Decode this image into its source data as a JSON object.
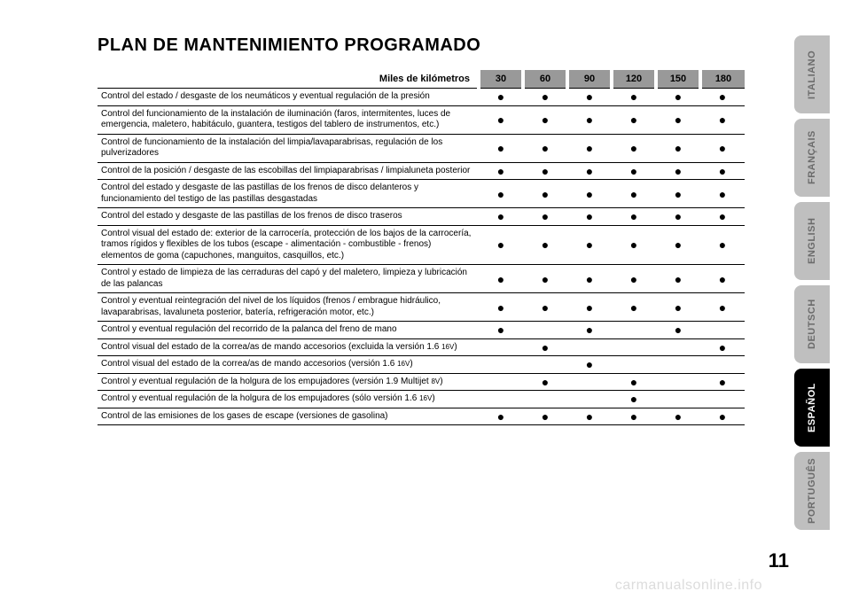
{
  "title": "PLAN DE MANTENIMIENTO PROGRAMADO",
  "header_label": "Miles de kilómetros",
  "columns": [
    "30",
    "60",
    "90",
    "120",
    "150",
    "180"
  ],
  "rows": [
    {
      "desc": "Control del estado / desgaste de los neumáticos y eventual regulación de la presión",
      "dots": [
        1,
        1,
        1,
        1,
        1,
        1
      ]
    },
    {
      "desc": "Control del funcionamiento de la instalación de iluminación (faros, intermitentes, luces de emergencia, maletero, habitáculo, guantera, testigos del tablero de instrumentos, etc.)",
      "dots": [
        1,
        1,
        1,
        1,
        1,
        1
      ]
    },
    {
      "desc": "Control de funcionamiento de la instalación del limpia/lavaparabrisas, regulación de los pulverizadores",
      "dots": [
        1,
        1,
        1,
        1,
        1,
        1
      ]
    },
    {
      "desc": "Control de la posición / desgaste de las escobillas del limpiaparabrisas / limpialuneta posterior",
      "dots": [
        1,
        1,
        1,
        1,
        1,
        1
      ]
    },
    {
      "desc": "Control del estado y desgaste de las pastillas de los frenos de disco delanteros y funcionamiento del testigo de las pastillas desgastadas",
      "dots": [
        1,
        1,
        1,
        1,
        1,
        1
      ]
    },
    {
      "desc": "Control del estado y desgaste de las pastillas de los frenos de disco traseros",
      "dots": [
        1,
        1,
        1,
        1,
        1,
        1
      ]
    },
    {
      "desc": "Control visual del estado de: exterior de la carrocería, protección de los bajos de la carrocería, tramos rígidos y flexibles de los tubos (escape -  alimentación - combustible - frenos) elementos de goma (capuchones, manguitos, casquillos, etc.)",
      "dots": [
        1,
        1,
        1,
        1,
        1,
        1
      ]
    },
    {
      "desc": "Control y estado de limpieza de las cerraduras del capó y del maletero, limpieza y lubricación de las palancas",
      "dots": [
        1,
        1,
        1,
        1,
        1,
        1
      ]
    },
    {
      "desc": "Control y eventual reintegración del nivel de los líquidos (frenos / embrague hidráulico, lavaparabrisas, lavaluneta posterior, batería, refrigeración motor, etc.)",
      "dots": [
        1,
        1,
        1,
        1,
        1,
        1
      ]
    },
    {
      "desc": "Control y eventual regulación del recorrido de la palanca del freno de mano",
      "dots": [
        1,
        0,
        1,
        0,
        1,
        0
      ]
    },
    {
      "desc": "Control visual del estado de la correa/as de mando accesorios (excluida la versión 1.6 <small>16V</small>)",
      "dots": [
        0,
        1,
        0,
        0,
        0,
        1
      ]
    },
    {
      "desc": "Control visual del estado de la correa/as de mando accesorios (versión 1.6 <small>16V</small>)",
      "dots": [
        0,
        0,
        1,
        0,
        0,
        0
      ]
    },
    {
      "desc": "Control y eventual regulación de la holgura de los empujadores (versión 1.9 Multijet <small>8V</small>)",
      "dots": [
        0,
        1,
        0,
        1,
        0,
        1
      ]
    },
    {
      "desc": "Control y eventual regulación de la holgura de los empujadores (sólo versión 1.6 <small>16V</small>)",
      "dots": [
        0,
        0,
        0,
        1,
        0,
        0
      ]
    },
    {
      "desc": "Control de las emisiones de los gases de escape (versiones de gasolina)",
      "dots": [
        1,
        1,
        1,
        1,
        1,
        1
      ]
    }
  ],
  "tabs": [
    {
      "label": "ITALIANO",
      "active": false
    },
    {
      "label": "FRANÇAIS",
      "active": false
    },
    {
      "label": "ENGLISH",
      "active": false
    },
    {
      "label": "DEUTSCH",
      "active": false
    },
    {
      "label": "ESPAÑOL",
      "active": true
    },
    {
      "label": "PORTUGUÊS",
      "active": false
    }
  ],
  "page_number": "11",
  "watermark": "carmanualsonline.info",
  "colors": {
    "header_cell_bg": "#999999",
    "tab_inactive_bg": "#bfbfbf",
    "tab_inactive_fg": "#6b6b6b",
    "tab_active_bg": "#000000",
    "tab_active_fg": "#ffffff",
    "watermark_color": "#dcdcdc"
  }
}
